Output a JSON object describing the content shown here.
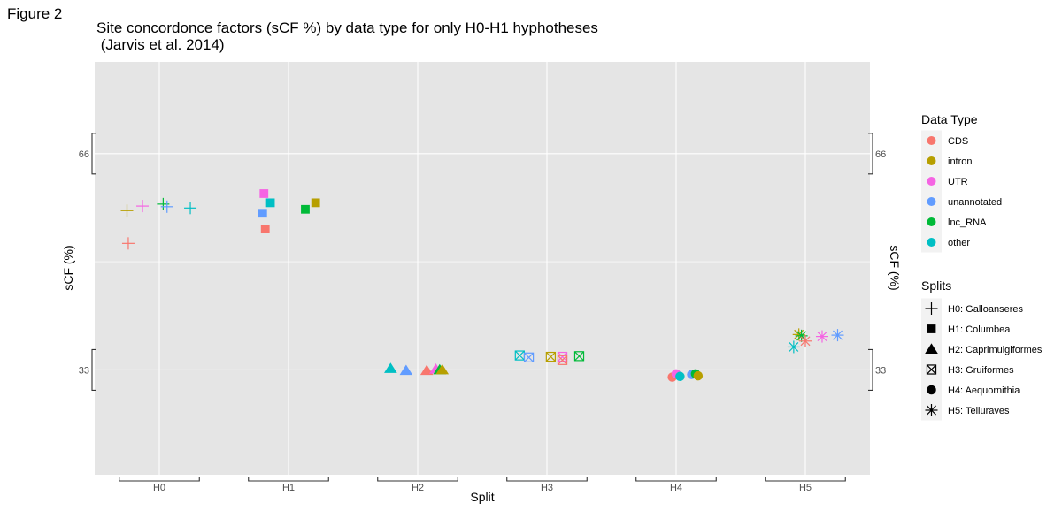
{
  "figure_label": "Figure 2",
  "chart_data": {
    "type": "scatter",
    "title": "Site concordonce factors (sCF %) by data type for only H0-H1 hyphotheses\n (Jarvis et al. 2014)",
    "xlabel": "Split",
    "ylabel": "sCF (%)",
    "ylabel_right": "sCF (%)",
    "categories": [
      "H0",
      "H1",
      "H2",
      "H3",
      "H4",
      "H5"
    ],
    "ylim": [
      17,
      80
    ],
    "yticks": [
      33,
      66
    ],
    "grid": true,
    "legend_position": "right",
    "colors": {
      "CDS": "#F8766D",
      "intron": "#B79F00",
      "UTR": "#F564E3",
      "unannotated": "#619CFF",
      "lnc_RNA": "#00BA38",
      "other": "#00BFC4"
    },
    "data_type_legend": {
      "title": "Data Type",
      "entries": [
        "CDS",
        "intron",
        "UTR",
        "unannotated",
        "lnc_RNA",
        "other"
      ]
    },
    "splits_legend": {
      "title": "Splits",
      "entries": [
        {
          "label": "H0: Galloanseres",
          "shape": "plus"
        },
        {
          "label": "H1: Columbea",
          "shape": "square"
        },
        {
          "label": "H2: Caprimulgiformes",
          "shape": "triangle"
        },
        {
          "label": "H3: Gruiformes",
          "shape": "boxx"
        },
        {
          "label": "H4: Aequornithia",
          "shape": "circle"
        },
        {
          "label": "H5: Telluraves",
          "shape": "star"
        }
      ]
    },
    "points": [
      {
        "split": "H0",
        "x": -0.24,
        "type": "CDS",
        "y": 52.3
      },
      {
        "split": "H0",
        "x": -0.25,
        "type": "intron",
        "y": 57.3
      },
      {
        "split": "H0",
        "x": -0.13,
        "type": "UTR",
        "y": 58.0
      },
      {
        "split": "H0",
        "x": 0.03,
        "type": "lnc_RNA",
        "y": 58.3
      },
      {
        "split": "H0",
        "x": 0.06,
        "type": "unannotated",
        "y": 57.9
      },
      {
        "split": "H0",
        "x": 0.24,
        "type": "other",
        "y": 57.7
      },
      {
        "split": "H1",
        "x": -0.2,
        "type": "unannotated",
        "y": 56.9
      },
      {
        "split": "H1",
        "x": -0.18,
        "type": "CDS",
        "y": 54.5
      },
      {
        "split": "H1",
        "x": -0.19,
        "type": "UTR",
        "y": 59.9
      },
      {
        "split": "H1",
        "x": -0.14,
        "type": "other",
        "y": 58.5
      },
      {
        "split": "H1",
        "x": 0.13,
        "type": "lnc_RNA",
        "y": 57.5
      },
      {
        "split": "H1",
        "x": 0.21,
        "type": "intron",
        "y": 58.5
      },
      {
        "split": "H2",
        "x": -0.21,
        "type": "other",
        "y": 33.2
      },
      {
        "split": "H2",
        "x": -0.09,
        "type": "unannotated",
        "y": 32.9
      },
      {
        "split": "H2",
        "x": 0.07,
        "type": "CDS",
        "y": 32.9
      },
      {
        "split": "H2",
        "x": 0.14,
        "type": "UTR",
        "y": 33.1
      },
      {
        "split": "H2",
        "x": 0.17,
        "type": "lnc_RNA",
        "y": 33.0
      },
      {
        "split": "H2",
        "x": 0.19,
        "type": "intron",
        "y": 33.0
      },
      {
        "split": "H3",
        "x": -0.21,
        "type": "other",
        "y": 35.2
      },
      {
        "split": "H3",
        "x": -0.14,
        "type": "unannotated",
        "y": 34.9
      },
      {
        "split": "H3",
        "x": 0.03,
        "type": "intron",
        "y": 35.0
      },
      {
        "split": "H3",
        "x": 0.12,
        "type": "UTR",
        "y": 35.0
      },
      {
        "split": "H3",
        "x": 0.12,
        "type": "CDS",
        "y": 34.5
      },
      {
        "split": "H3",
        "x": 0.25,
        "type": "lnc_RNA",
        "y": 35.1
      },
      {
        "split": "H4",
        "x": -0.03,
        "type": "CDS",
        "y": 31.9
      },
      {
        "split": "H4",
        "x": 0.0,
        "type": "UTR",
        "y": 32.4
      },
      {
        "split": "H4",
        "x": 0.03,
        "type": "other",
        "y": 32.0
      },
      {
        "split": "H4",
        "x": 0.12,
        "type": "unannotated",
        "y": 32.3
      },
      {
        "split": "H4",
        "x": 0.15,
        "type": "lnc_RNA",
        "y": 32.4
      },
      {
        "split": "H4",
        "x": 0.17,
        "type": "intron",
        "y": 32.1
      },
      {
        "split": "H5",
        "x": -0.09,
        "type": "other",
        "y": 36.5
      },
      {
        "split": "H5",
        "x": -0.05,
        "type": "intron",
        "y": 38.4
      },
      {
        "split": "H5",
        "x": -0.03,
        "type": "lnc_RNA",
        "y": 38.2
      },
      {
        "split": "H5",
        "x": 0.0,
        "type": "CDS",
        "y": 37.4
      },
      {
        "split": "H5",
        "x": 0.13,
        "type": "UTR",
        "y": 38.1
      },
      {
        "split": "H5",
        "x": 0.25,
        "type": "unannotated",
        "y": 38.3
      }
    ]
  }
}
